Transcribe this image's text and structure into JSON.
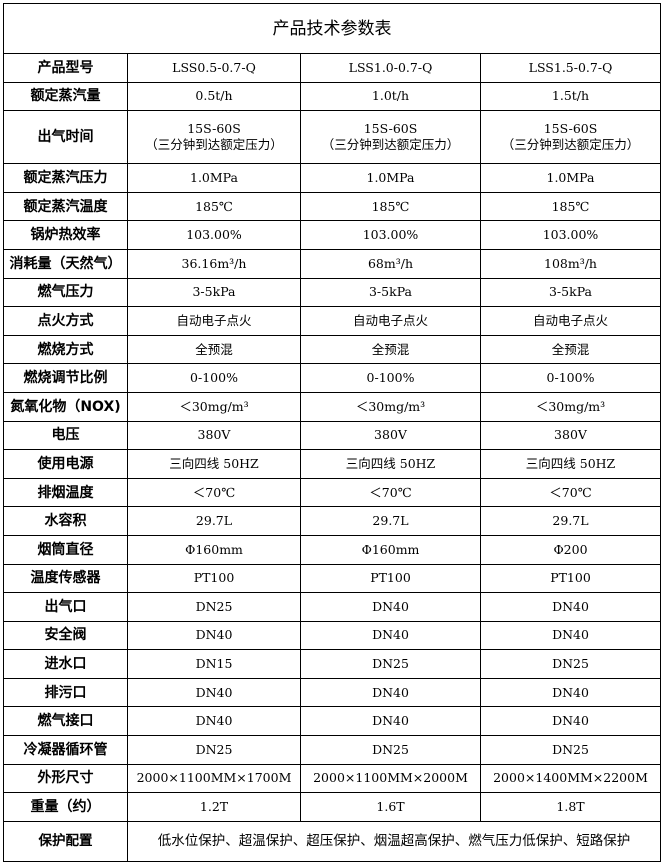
{
  "title": "产品技术参数表",
  "rows": [
    {
      "label": "产品型号",
      "values": [
        "LSS0.5-0.7-Q",
        "LSS1.0-0.7-Q",
        "LSS1.5-0.7-Q"
      ]
    },
    {
      "label": "额定蒸汽量",
      "values": [
        "0.5t/h",
        "1.0t/h",
        "1.5t/h"
      ]
    },
    {
      "label": "出气时间",
      "values": [
        "15S-60S",
        "15S-60S",
        "15S-60S"
      ],
      "notes": [
        "（三分钟到达额定压力）",
        "（三分钟到达额定压力）",
        "（三分钟到达额定压力）"
      ]
    },
    {
      "label": "额定蒸汽压力",
      "values": [
        "1.0MPa",
        "1.0MPa",
        "1.0MPa"
      ]
    },
    {
      "label": "额定蒸汽温度",
      "values": [
        "185℃",
        "185℃",
        "185℃"
      ]
    },
    {
      "label": "锅炉热效率",
      "values": [
        "103.00%",
        "103.00%",
        "103.00%"
      ]
    },
    {
      "label": "消耗量（天然气）",
      "values": [
        "36.16m³/h",
        "68m³/h",
        "108m³/h"
      ]
    },
    {
      "label": "燃气压力",
      "values": [
        "3-5kPa",
        "3-5kPa",
        "3-5kPa"
      ]
    },
    {
      "label": "点火方式",
      "values": [
        "自动电子点火",
        "自动电子点火",
        "自动电子点火"
      ]
    },
    {
      "label": "燃烧方式",
      "values": [
        "全预混",
        "全预混",
        "全预混"
      ]
    },
    {
      "label": "燃烧调节比例",
      "values": [
        "0-100%",
        "0-100%",
        "0-100%"
      ]
    },
    {
      "label": "氮氧化物（NOX)",
      "values": [
        "＜30mg/m³",
        "＜30mg/m³",
        "＜30mg/m³"
      ]
    },
    {
      "label": "电压",
      "values": [
        "380V",
        "380V",
        "380V"
      ]
    },
    {
      "label": "使用电源",
      "values": [
        "三向四线 50HZ",
        "三向四线 50HZ",
        "三向四线 50HZ"
      ]
    },
    {
      "label": "排烟温度",
      "values": [
        "＜70℃",
        "＜70℃",
        "＜70℃"
      ]
    },
    {
      "label": "水容积",
      "values": [
        "29.7L",
        "29.7L",
        "29.7L"
      ]
    },
    {
      "label": "烟筒直径",
      "values": [
        "Φ160mm",
        "Φ160mm",
        "Φ200"
      ]
    },
    {
      "label": "温度传感器",
      "values": [
        "PT100",
        "PT100",
        "PT100"
      ]
    },
    {
      "label": "出气口",
      "values": [
        "DN25",
        "DN40",
        "DN40"
      ]
    },
    {
      "label": "安全阀",
      "values": [
        "DN40",
        "DN40",
        "DN40"
      ]
    },
    {
      "label": "进水口",
      "values": [
        "DN15",
        "DN25",
        "DN25"
      ]
    },
    {
      "label": "排污口",
      "values": [
        "DN40",
        "DN40",
        "DN40"
      ]
    },
    {
      "label": "燃气接口",
      "values": [
        "DN40",
        "DN40",
        "DN40"
      ]
    },
    {
      "label": "冷凝器循环管",
      "values": [
        "DN25",
        "DN25",
        "DN25"
      ]
    },
    {
      "label": "外形尺寸",
      "values": [
        "2000×1100MM×1700M",
        "2000×1100MM×2000M",
        "2000×1400MM×2200M"
      ]
    },
    {
      "label": "重量（约）",
      "values": [
        "1.2T",
        "1.6T",
        "1.8T"
      ]
    }
  ],
  "protection": {
    "label": "保护配置",
    "value": "低水位保护、超温保护、超压保护、烟温超高保护、燃气压力低保护、短路保护"
  }
}
